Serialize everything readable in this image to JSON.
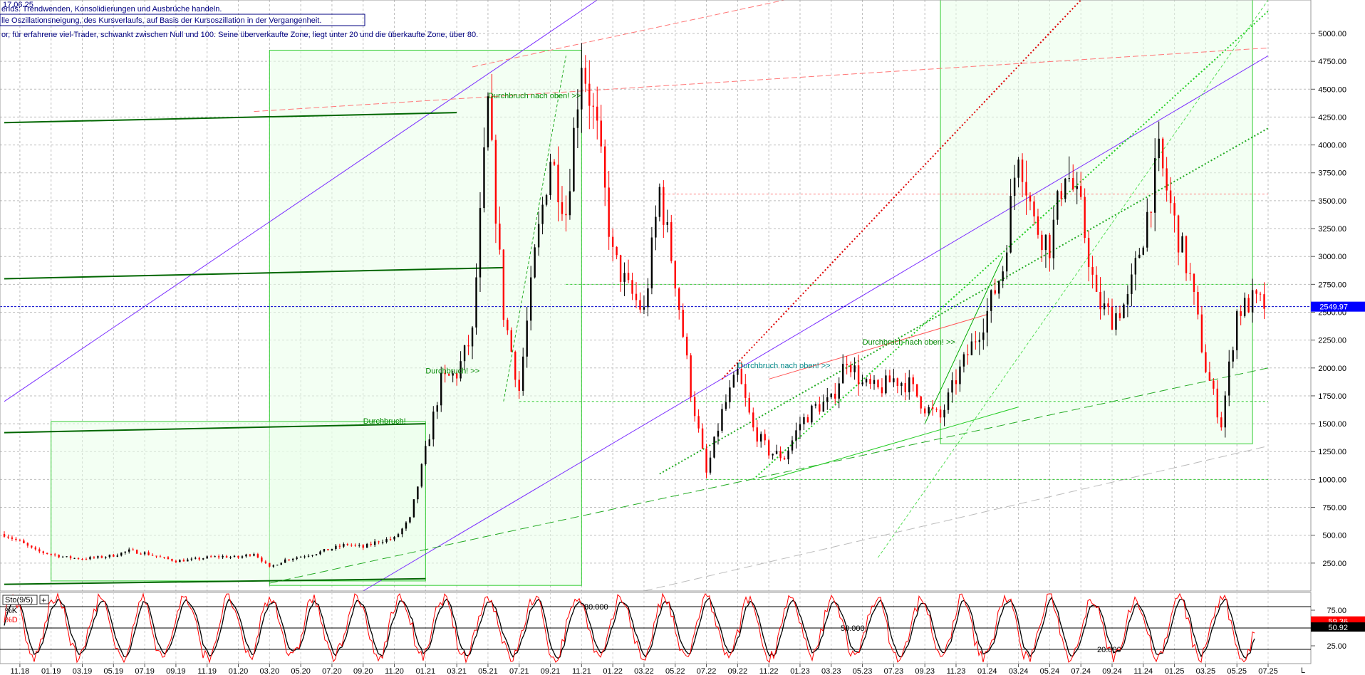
{
  "header": {
    "date": "17.06.25",
    "desc_line1": "erlds: Trendwenden, Konsolidierungen und Ausbrüche handeln.",
    "desc_line2": "lle Oszillationsneigung, des Kursverlaufs, auf Basis der Kursoszillation in der Vergangenheit.",
    "desc_line3": "or, für erfahrene viel-Trader, schwankt zwischen Null und 100. Seine überverkaufte Zone, liegt unter 20 und die überkaufte Zone, über 80."
  },
  "chart_data": [
    {
      "type": "candlestick",
      "x_range": [
        "2018-10",
        "2025-07"
      ],
      "ylim": [
        0,
        5300
      ],
      "yticks": [
        250,
        500,
        750,
        1000,
        1250,
        1500,
        1750,
        2000,
        2250,
        2500,
        2750,
        3000,
        3250,
        3500,
        3750,
        4000,
        4250,
        4500,
        4750,
        5000
      ],
      "ytick_labels": [
        "250.00",
        "500.00",
        "750.00",
        "1000.00",
        "1250.00",
        "1500.00",
        "1750.00",
        "2000.00",
        "2250.00",
        "2500.00",
        "2750.00",
        "3000.00",
        "3250.00",
        "3500.00",
        "3750.00",
        "4000.00",
        "4250.00",
        "4500.00",
        "4750.00",
        "5000.00"
      ],
      "xtick_labels": [
        "11.18",
        "01.19",
        "03.19",
        "05.19",
        "07.19",
        "09.19",
        "11.19",
        "01.20",
        "03.20",
        "05.20",
        "07.20",
        "09.20",
        "11.20",
        "01.21",
        "03.21",
        "05.21",
        "07.21",
        "09.21",
        "11.21",
        "01.22",
        "03.22",
        "05.22",
        "07.22",
        "09.22",
        "11.22",
        "01.23",
        "03.23",
        "05.23",
        "07.23",
        "09.23",
        "11.23",
        "01.24",
        "03.24",
        "05.24",
        "07.24",
        "09.24",
        "11.24",
        "01.25",
        "03.25",
        "05.25",
        "07.25"
      ],
      "last_price": "2549.97",
      "price_path": [
        [
          "2018-10",
          510
        ],
        [
          "2018-11",
          440
        ],
        [
          "2018-12",
          360
        ],
        [
          "2019-01",
          330
        ],
        [
          "2019-02",
          300
        ],
        [
          "2019-03",
          290
        ],
        [
          "2019-04",
          300
        ],
        [
          "2019-05",
          320
        ],
        [
          "2019-06",
          360
        ],
        [
          "2019-07",
          340
        ],
        [
          "2019-08",
          300
        ],
        [
          "2019-09",
          270
        ],
        [
          "2019-10",
          280
        ],
        [
          "2019-11",
          300
        ],
        [
          "2019-12",
          310
        ],
        [
          "2020-01",
          300
        ],
        [
          "2020-02",
          340
        ],
        [
          "2020-03",
          210
        ],
        [
          "2020-04",
          280
        ],
        [
          "2020-05",
          310
        ],
        [
          "2020-06",
          340
        ],
        [
          "2020-07",
          380
        ],
        [
          "2020-08",
          420
        ],
        [
          "2020-09",
          390
        ],
        [
          "2020-10",
          450
        ],
        [
          "2020-11",
          470
        ],
        [
          "2020-12",
          640
        ],
        [
          "2021-01",
          1250
        ],
        [
          "2021-02",
          1880
        ],
        [
          "2021-03",
          1950
        ],
        [
          "2021-04",
          2300
        ],
        [
          "2021-05",
          4350
        ],
        [
          "2021-06",
          2500
        ],
        [
          "2021-07",
          1800
        ],
        [
          "2021-08",
          3000
        ],
        [
          "2021-09",
          3900
        ],
        [
          "2021-10",
          3400
        ],
        [
          "2021-11",
          4800
        ],
        [
          "2021-12",
          4100
        ],
        [
          "2022-01",
          3000
        ],
        [
          "2022-02",
          2700
        ],
        [
          "2022-03",
          2500
        ],
        [
          "2022-04",
          3600
        ],
        [
          "2022-05",
          2800
        ],
        [
          "2022-06",
          1800
        ],
        [
          "2022-07",
          1050
        ],
        [
          "2022-08",
          1600
        ],
        [
          "2022-09",
          1950
        ],
        [
          "2022-10",
          1450
        ],
        [
          "2022-11",
          1250
        ],
        [
          "2022-12",
          1200
        ],
        [
          "2023-01",
          1500
        ],
        [
          "2023-02",
          1650
        ],
        [
          "2023-03",
          1700
        ],
        [
          "2023-04",
          2100
        ],
        [
          "2023-05",
          1850
        ],
        [
          "2023-06",
          1800
        ],
        [
          "2023-07",
          1900
        ],
        [
          "2023-08",
          1850
        ],
        [
          "2023-09",
          1650
        ],
        [
          "2023-10",
          1550
        ],
        [
          "2023-11",
          1900
        ],
        [
          "2023-12",
          2200
        ],
        [
          "2024-01",
          2500
        ],
        [
          "2024-02",
          2900
        ],
        [
          "2024-03",
          4000
        ],
        [
          "2024-04",
          3300
        ],
        [
          "2024-05",
          3100
        ],
        [
          "2024-06",
          3800
        ],
        [
          "2024-07",
          3400
        ],
        [
          "2024-08",
          2600
        ],
        [
          "2024-09",
          2450
        ],
        [
          "2024-10",
          2600
        ],
        [
          "2024-11",
          3200
        ],
        [
          "2024-12",
          3900
        ],
        [
          "2025-01",
          3300
        ],
        [
          "2025-02",
          2800
        ],
        [
          "2025-03",
          2000
        ],
        [
          "2025-04",
          1500
        ],
        [
          "2025-05",
          2500
        ],
        [
          "2025-06",
          2600
        ],
        [
          "2025-07",
          2550
        ]
      ],
      "annotations": [
        "Durchbruch nach oben! >>",
        "Durchbruch! >>",
        "Durchbruch!",
        "Durchbruch nach oben! >>",
        "Durchbruch nach oben! >>"
      ],
      "colors": {
        "up": "#000000",
        "down": "#ff0000",
        "support": "#00aa00",
        "channel": "#7b2fff",
        "resistance": "#ff3333",
        "last_price_bg": "#0000ff"
      }
    },
    {
      "type": "line",
      "indicator": "Sto(9/5)",
      "ylim": [
        0,
        100
      ],
      "yticks": [
        25,
        75
      ],
      "ytick_labels": [
        "25.00",
        "75.00"
      ],
      "levels": [
        {
          "value": 80,
          "label": "80.000"
        },
        {
          "value": 50,
          "label": "50.000"
        },
        {
          "value": 20,
          "label": "20.000"
        }
      ],
      "series": [
        {
          "name": "%K",
          "color": "#ff0000",
          "last": "59.36"
        },
        {
          "name": "%D",
          "color": "#000000",
          "last": "50.92"
        }
      ]
    }
  ],
  "footer": {
    "right_marker": "L"
  }
}
